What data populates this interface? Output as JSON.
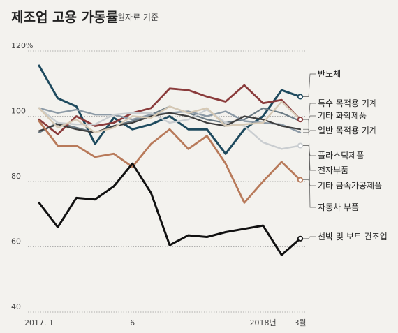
{
  "chart_data": {
    "type": "line",
    "title": "제조업 고용 가동률",
    "subtitle": "원자료 기준",
    "x": [
      "2017.1",
      "2",
      "3",
      "4",
      "5",
      "6",
      "7",
      "8",
      "9",
      "10",
      "11",
      "12",
      "2018.1",
      "2",
      "3"
    ],
    "xtick_labels": [
      {
        "index": 0,
        "text": "2017. 1"
      },
      {
        "index": 5,
        "text": "6"
      },
      {
        "index": 12,
        "text": "2018년"
      },
      {
        "index": 14,
        "text": "3월"
      }
    ],
    "y_ticks": [
      "120%",
      "100",
      "80",
      "60",
      "40"
    ],
    "y_tick_values": [
      120,
      100,
      80,
      60,
      40
    ],
    "ylim": [
      40,
      120
    ],
    "grid": true,
    "series": [
      {
        "name": "반도체",
        "color": "#1e4a5e",
        "width": 3,
        "marker": true,
        "values": [
          115.5,
          105.5,
          103,
          91.5,
          99.5,
          96,
          97.5,
          100,
          96,
          96,
          88.5,
          96,
          100,
          108,
          106
        ]
      },
      {
        "name": "특수 목적용 기계",
        "color": "#6b7b85",
        "width": 2.2,
        "marker": false,
        "values": [
          95,
          98,
          96.5,
          95,
          97,
          98.5,
          100.5,
          103,
          101,
          99,
          98,
          99,
          102.5,
          101,
          98.5
        ]
      },
      {
        "name": "기타 화학제품",
        "color": "#8a3b3b",
        "width": 2.8,
        "marker": true,
        "values": [
          99,
          94.5,
          100,
          97,
          98,
          101,
          102.5,
          108.5,
          108,
          106,
          104.5,
          109.5,
          104,
          105,
          99
        ]
      },
      {
        "name": "일반 목적용 기계",
        "color": "#8c9aa6",
        "width": 2.4,
        "marker": false,
        "values": [
          102.5,
          101,
          102,
          100.5,
          100.5,
          99,
          100.5,
          101,
          101.5,
          100,
          101.5,
          98.5,
          98,
          97.5,
          95
        ]
      },
      {
        "name": "플라스틱제품",
        "color": "#c9cdd0",
        "width": 2.4,
        "marker": true,
        "values": [
          102.5,
          98,
          97.5,
          97.5,
          100.5,
          101,
          101,
          98,
          99,
          102,
          98,
          97,
          92,
          90,
          91
        ]
      },
      {
        "name": "전자부품",
        "color": "#3d3d3d",
        "width": 2.2,
        "marker": false,
        "values": [
          95.5,
          97.5,
          96,
          95,
          97,
          98,
          100,
          101,
          100,
          98,
          97,
          100,
          99,
          97,
          96
        ]
      },
      {
        "name": "기타 금속가공제품",
        "color": "#b87a5a",
        "width": 2.8,
        "marker": true,
        "values": [
          98.5,
          91,
          91,
          87.5,
          88.5,
          84.5,
          91.5,
          96,
          90,
          94,
          85.5,
          73.5,
          80,
          86,
          80.5
        ]
      },
      {
        "name": "자동차 부품",
        "color": "#d6c9b5",
        "width": 2.4,
        "marker": false,
        "values": [
          102.5,
          96.5,
          99,
          95,
          96.5,
          100,
          99.5,
          103,
          101,
          102.5,
          97,
          97.5,
          98,
          104.5,
          99
        ]
      },
      {
        "name": "선박 및 보트 건조업",
        "color": "#111111",
        "width": 3,
        "marker": true,
        "values": [
          73.5,
          66,
          75,
          74.5,
          78.5,
          85.5,
          76.5,
          60.5,
          63.5,
          63,
          64.5,
          65.5,
          66.5,
          57.5,
          62.5
        ]
      }
    ]
  }
}
